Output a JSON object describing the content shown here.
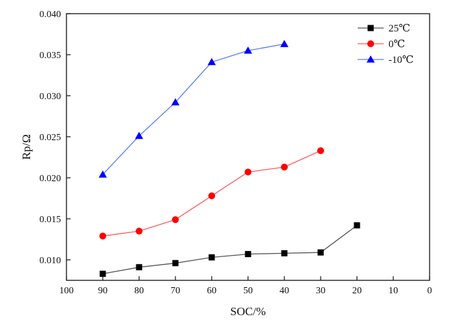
{
  "chart_data": {
    "type": "line",
    "title": "",
    "xlabel": "SOC/%",
    "ylabel": "Rp/Ω",
    "xlim": [
      100,
      0
    ],
    "ylim": [
      0.0075,
      0.04
    ],
    "x_ticks": [
      100,
      90,
      80,
      70,
      60,
      50,
      40,
      30,
      20,
      10,
      0
    ],
    "x_tick_labels": [
      "100",
      "90",
      "80",
      "70",
      "60",
      "50",
      "40",
      "30",
      "20",
      "10",
      "0"
    ],
    "y_ticks": [
      0.01,
      0.015,
      0.02,
      0.025,
      0.03,
      0.035,
      0.04
    ],
    "y_tick_labels": [
      "0.010",
      "0.015",
      "0.020",
      "0.025",
      "0.030",
      "0.035",
      "0.040"
    ],
    "grid": false,
    "legend_position": "top-right",
    "series": [
      {
        "name": "25℃",
        "marker": "square",
        "color": "#000000",
        "line_color": "#555555",
        "x": [
          90,
          80,
          70,
          60,
          50,
          40,
          30,
          20
        ],
        "values": [
          0.0083,
          0.0091,
          0.0096,
          0.0103,
          0.0107,
          0.0108,
          0.0109,
          0.0142
        ]
      },
      {
        "name": "0℃",
        "marker": "circle",
        "color": "#ff0000",
        "line_color": "#ff5a5a",
        "x": [
          90,
          80,
          70,
          60,
          50,
          40,
          30
        ],
        "values": [
          0.0129,
          0.0135,
          0.0149,
          0.0178,
          0.0207,
          0.0213,
          0.0233
        ]
      },
      {
        "name": "-10℃",
        "marker": "triangle",
        "color": "#0000ff",
        "line_color": "#5a78ff",
        "x": [
          90,
          80,
          70,
          60,
          50,
          40
        ],
        "values": [
          0.0204,
          0.0251,
          0.0292,
          0.0341,
          0.0355,
          0.0363
        ]
      }
    ]
  }
}
